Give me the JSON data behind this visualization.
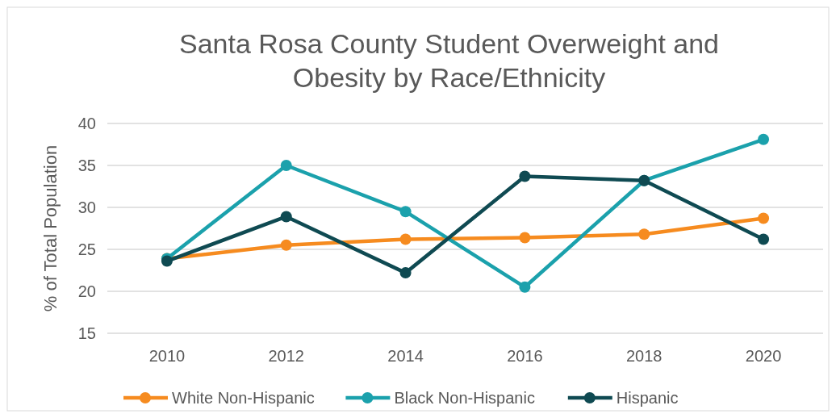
{
  "chart_data": {
    "type": "line",
    "title": "Santa Rosa County Student Overweight and Obesity by Race/Ethnicity",
    "ylabel": "% of Total Population",
    "categories": [
      "2010",
      "2012",
      "2014",
      "2016",
      "2018",
      "2020"
    ],
    "series": [
      {
        "name": "White Non-Hispanic",
        "color": "#f68b1f",
        "values": [
          23.9,
          25.5,
          26.2,
          26.4,
          26.8,
          28.7
        ]
      },
      {
        "name": "Black Non-Hispanic",
        "color": "#1ba1ac",
        "values": [
          23.9,
          35.0,
          29.5,
          20.5,
          33.2,
          38.1
        ]
      },
      {
        "name": "Hispanic",
        "color": "#0f4a52",
        "values": [
          23.6,
          28.9,
          22.2,
          33.7,
          33.2,
          26.2
        ]
      }
    ],
    "ylim": [
      15,
      40
    ],
    "yticks": [
      15,
      20,
      25,
      30,
      35,
      40
    ],
    "grid": "y",
    "legend": "bottom",
    "marker": "circle",
    "line_style": "solid"
  }
}
